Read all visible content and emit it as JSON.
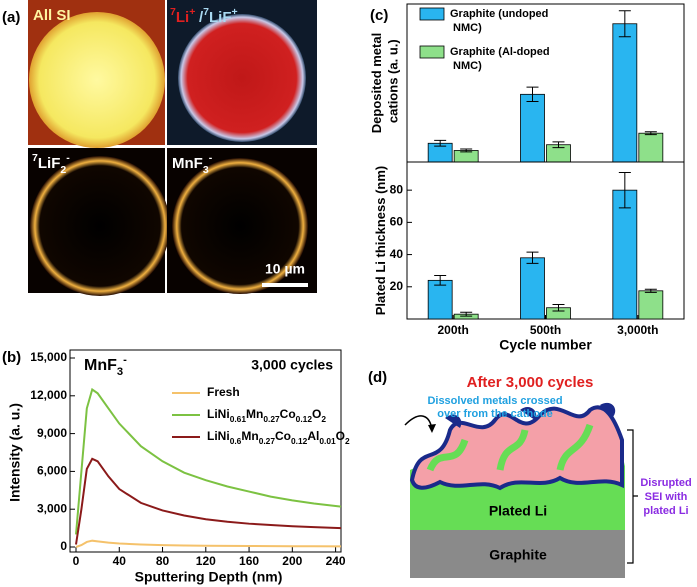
{
  "panels": {
    "a": "(a)",
    "b": "(b)",
    "c": "(c)",
    "d": "(d)"
  },
  "image_labels": [
    "All SI",
    "7Li+",
    "/7LiF+",
    "7LiF2-",
    "MnF3-"
  ],
  "scale_bar": "10 µm",
  "chart_data": [
    {
      "type": "bar",
      "ylabel": "Deposited metal cations (a. u.)",
      "categories": [
        "200th",
        "500th",
        "3,000th"
      ],
      "ylim": [
        0,
        100
      ],
      "series": [
        {
          "name": "Graphite (undoped NMC)",
          "color": "#29b5f0",
          "values": [
            13,
            47,
            96
          ],
          "errors": [
            2,
            5,
            9
          ]
        },
        {
          "name": "Graphite (Al-doped NMC)",
          "color": "#8ee08a",
          "values": [
            8,
            12,
            20
          ],
          "errors": [
            1,
            2,
            1
          ]
        }
      ]
    },
    {
      "type": "bar",
      "ylabel": "Plated Li thickness (nm)",
      "xlabel": "Cycle number",
      "categories": [
        "200th",
        "500th",
        "3,000th"
      ],
      "ylim": [
        0,
        95
      ],
      "yticks": [
        20,
        40,
        60,
        80
      ],
      "series": [
        {
          "color": "#29b5f0",
          "values": [
            24,
            38,
            80
          ],
          "errors": [
            3,
            3.5,
            11
          ]
        },
        {
          "color": "#8ee08a",
          "values": [
            3,
            7,
            17.5
          ],
          "errors": [
            1.2,
            2,
            1
          ]
        }
      ]
    },
    {
      "type": "line",
      "title": "MnF3-",
      "annotation": "3,000 cycles",
      "xlabel": "Sputtering Depth (nm)",
      "ylabel": "Intensity (a. u.)",
      "x": [
        0,
        5,
        10,
        15,
        20,
        30,
        40,
        60,
        80,
        100,
        120,
        140,
        160,
        180,
        200,
        220,
        245
      ],
      "xlim": [
        0,
        245
      ],
      "xticks": [
        0,
        40,
        80,
        120,
        160,
        200,
        240
      ],
      "ylim": [
        0,
        15000
      ],
      "yticks": [
        0,
        {
          "value": 3000,
          "label": "3,000"
        },
        {
          "value": 6000,
          "label": "6,000"
        },
        {
          "value": 9000,
          "label": "9,000"
        },
        {
          "value": 12000,
          "label": "12,000"
        },
        {
          "value": 15000,
          "label": "15,000"
        }
      ],
      "series": [
        {
          "name": "Fresh",
          "color": "#f5c26b",
          "values": [
            0,
            150,
            400,
            500,
            450,
            350,
            280,
            200,
            150,
            120,
            100,
            90,
            80,
            70,
            60,
            60,
            50
          ]
        },
        {
          "name": "LiNi0.61Mn0.27Co0.12O2",
          "color": "#7cc242",
          "values": [
            1000,
            6000,
            11000,
            12500,
            12200,
            11000,
            9800,
            8000,
            6800,
            5900,
            5300,
            4800,
            4400,
            4000,
            3700,
            3450,
            3200
          ]
        },
        {
          "name": "LiNi0.6Mn0.27Co0.12Al0.01O2",
          "color": "#8b1a1a",
          "values": [
            200,
            3000,
            6200,
            7000,
            6800,
            5600,
            4600,
            3500,
            2900,
            2500,
            2200,
            2000,
            1850,
            1750,
            1650,
            1580,
            1500
          ]
        }
      ]
    }
  ],
  "diagram": {
    "title": "After 3,000 cycles",
    "note": [
      "Dissolved metals crossed",
      "over from the cathode"
    ],
    "bracket_label": [
      "Disrupted",
      "SEI with",
      "plated Li"
    ],
    "layers": [
      "Plated Li",
      "Graphite"
    ]
  }
}
